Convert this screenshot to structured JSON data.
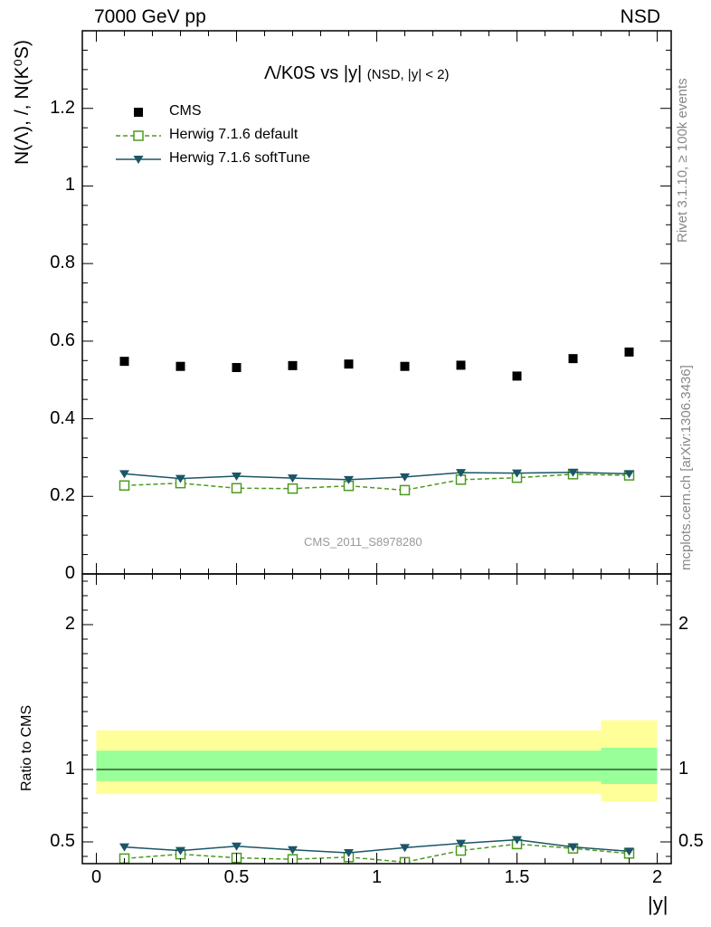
{
  "header": {
    "energy_label": "7000 GeV pp",
    "process_label": "NSD"
  },
  "side_labels": {
    "rivet": "Rivet 3.1.10, ≥ 100k events",
    "mcplots": "mcplots.cern.ch [arXiv:1306.3436]"
  },
  "chart_data": [
    {
      "type": "scatter",
      "title": "Λ/K0S vs |y|",
      "subtitle": "(NSD, |y| < 2)",
      "ylabel": "N(Λ), /, N(K⁰S)",
      "xlabel": "",
      "watermark": "CMS_2011_S8978280",
      "xlim": [
        -0.05,
        2.05
      ],
      "ylim": [
        0,
        1.4
      ],
      "yticks": [
        0,
        0.2,
        0.4,
        0.6,
        0.8,
        1,
        1.2
      ],
      "ytick_labels": [
        "0",
        "0.2",
        "0.4",
        "0.6",
        "0.8",
        "1",
        "1.2"
      ],
      "legend_position": "top-left",
      "x": [
        0.1,
        0.3,
        0.5,
        0.7,
        0.9,
        1.1,
        1.3,
        1.5,
        1.7,
        1.9
      ],
      "series": [
        {
          "name": "CMS",
          "marker": "filled-square",
          "line": "none",
          "color": "#000000",
          "values": [
            0.548,
            0.535,
            0.532,
            0.537,
            0.541,
            0.535,
            0.538,
            0.51,
            0.555,
            0.572
          ]
        },
        {
          "name": "Herwig 7.1.6 default",
          "marker": "open-square",
          "line": "dashed",
          "color": "#4d9a1f",
          "values": [
            0.228,
            0.234,
            0.221,
            0.22,
            0.227,
            0.216,
            0.243,
            0.248,
            0.257,
            0.254
          ]
        },
        {
          "name": "Herwig 7.1.6 softTune",
          "marker": "triangle-down",
          "line": "solid",
          "color": "#1b5566",
          "values": [
            0.258,
            0.246,
            0.252,
            0.247,
            0.243,
            0.25,
            0.261,
            0.26,
            0.262,
            0.258
          ]
        }
      ]
    },
    {
      "type": "line",
      "ylabel": "Ratio to CMS",
      "xlabel": "|y|",
      "xlim": [
        -0.05,
        2.05
      ],
      "ylim": [
        0.35,
        2.35
      ],
      "xticks": [
        0,
        0.5,
        1,
        1.5,
        2
      ],
      "xtick_labels": [
        "0",
        "0.5",
        "1",
        "1.5",
        "2"
      ],
      "yticks": [
        0.5,
        1,
        2
      ],
      "ytick_labels": [
        "0.5",
        "1",
        "2"
      ],
      "reference_line": 1,
      "uncertainty_bands": [
        {
          "x_from": 0.0,
          "x_to": 1.8,
          "inner": [
            0.92,
            1.13
          ],
          "outer": [
            0.83,
            1.27
          ]
        },
        {
          "x_from": 1.8,
          "x_to": 2.0,
          "inner": [
            0.9,
            1.15
          ],
          "outer": [
            0.78,
            1.34
          ]
        }
      ],
      "band_colors": {
        "inner": "#99ff99",
        "outer": "#ffff99"
      },
      "x": [
        0.1,
        0.3,
        0.5,
        0.7,
        0.9,
        1.1,
        1.3,
        1.5,
        1.7,
        1.9
      ],
      "series": [
        {
          "name": "Herwig 7.1.6 default",
          "marker": "open-square",
          "line": "dashed",
          "color": "#4d9a1f",
          "values": [
            0.385,
            0.415,
            0.39,
            0.38,
            0.395,
            0.36,
            0.44,
            0.485,
            0.455,
            0.42
          ]
        },
        {
          "name": "Herwig 7.1.6 softTune",
          "marker": "triangle-down",
          "line": "solid",
          "color": "#1b5566",
          "values": [
            0.465,
            0.44,
            0.47,
            0.445,
            0.425,
            0.46,
            0.49,
            0.515,
            0.465,
            0.435
          ]
        }
      ]
    }
  ]
}
